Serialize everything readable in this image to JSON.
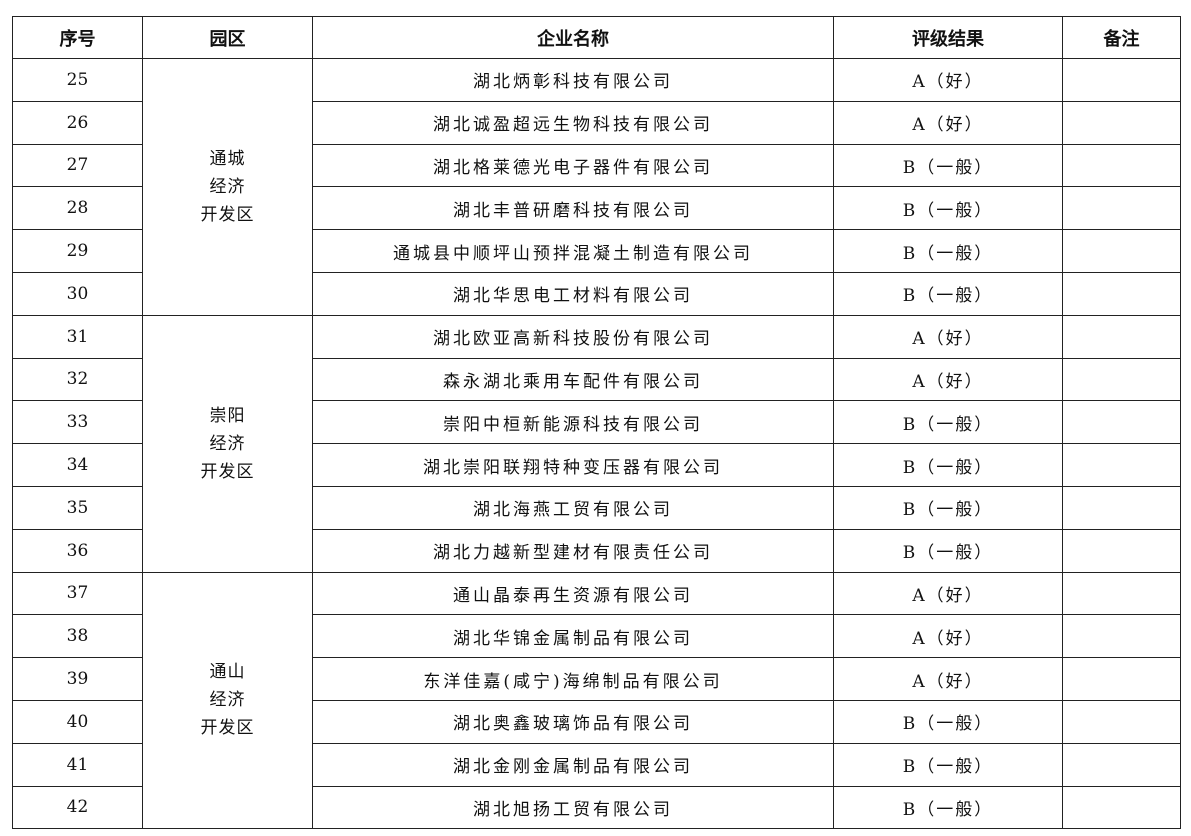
{
  "headers": {
    "no": "序号",
    "park": "园区",
    "company": "企业名称",
    "rating": "评级结果",
    "remark": "备注"
  },
  "groups": [
    {
      "park_lines": [
        "通城",
        "经济",
        "开发区"
      ],
      "rows": [
        {
          "no": "25",
          "company": "湖北炳彰科技有限公司",
          "rating": "A（好）",
          "remark": ""
        },
        {
          "no": "26",
          "company": "湖北诚盈超远生物科技有限公司",
          "rating": "A（好）",
          "remark": ""
        },
        {
          "no": "27",
          "company": "湖北格莱德光电子器件有限公司",
          "rating": "B（一般）",
          "remark": ""
        },
        {
          "no": "28",
          "company": "湖北丰普研磨科技有限公司",
          "rating": "B（一般）",
          "remark": ""
        },
        {
          "no": "29",
          "company": "通城县中顺坪山预拌混凝土制造有限公司",
          "rating": "B（一般）",
          "remark": ""
        },
        {
          "no": "30",
          "company": "湖北华思电工材料有限公司",
          "rating": "B（一般）",
          "remark": ""
        }
      ]
    },
    {
      "park_lines": [
        "崇阳",
        "经济",
        "开发区"
      ],
      "rows": [
        {
          "no": "31",
          "company": "湖北欧亚高新科技股份有限公司",
          "rating": "A（好）",
          "remark": ""
        },
        {
          "no": "32",
          "company": "森永湖北乘用车配件有限公司",
          "rating": "A（好）",
          "remark": ""
        },
        {
          "no": "33",
          "company": "崇阳中桓新能源科技有限公司",
          "rating": "B（一般）",
          "remark": ""
        },
        {
          "no": "34",
          "company": "湖北崇阳联翔特种变压器有限公司",
          "rating": "B（一般）",
          "remark": ""
        },
        {
          "no": "35",
          "company": "湖北海燕工贸有限公司",
          "rating": "B（一般）",
          "remark": ""
        },
        {
          "no": "36",
          "company": "湖北力越新型建材有限责任公司",
          "rating": "B（一般）",
          "remark": ""
        }
      ]
    },
    {
      "park_lines": [
        "通山",
        "经济",
        "开发区"
      ],
      "rows": [
        {
          "no": "37",
          "company": "通山晶泰再生资源有限公司",
          "rating": "A（好）",
          "remark": ""
        },
        {
          "no": "38",
          "company": "湖北华锦金属制品有限公司",
          "rating": "A（好）",
          "remark": ""
        },
        {
          "no": "39",
          "company": "东洋佳嘉(咸宁)海绵制品有限公司",
          "rating": "A（好）",
          "remark": ""
        },
        {
          "no": "40",
          "company": "湖北奥鑫玻璃饰品有限公司",
          "rating": "B（一般）",
          "remark": ""
        },
        {
          "no": "41",
          "company": "湖北金刚金属制品有限公司",
          "rating": "B（一般）",
          "remark": ""
        },
        {
          "no": "42",
          "company": "湖北旭扬工贸有限公司",
          "rating": "B（一般）",
          "remark": ""
        }
      ]
    }
  ]
}
